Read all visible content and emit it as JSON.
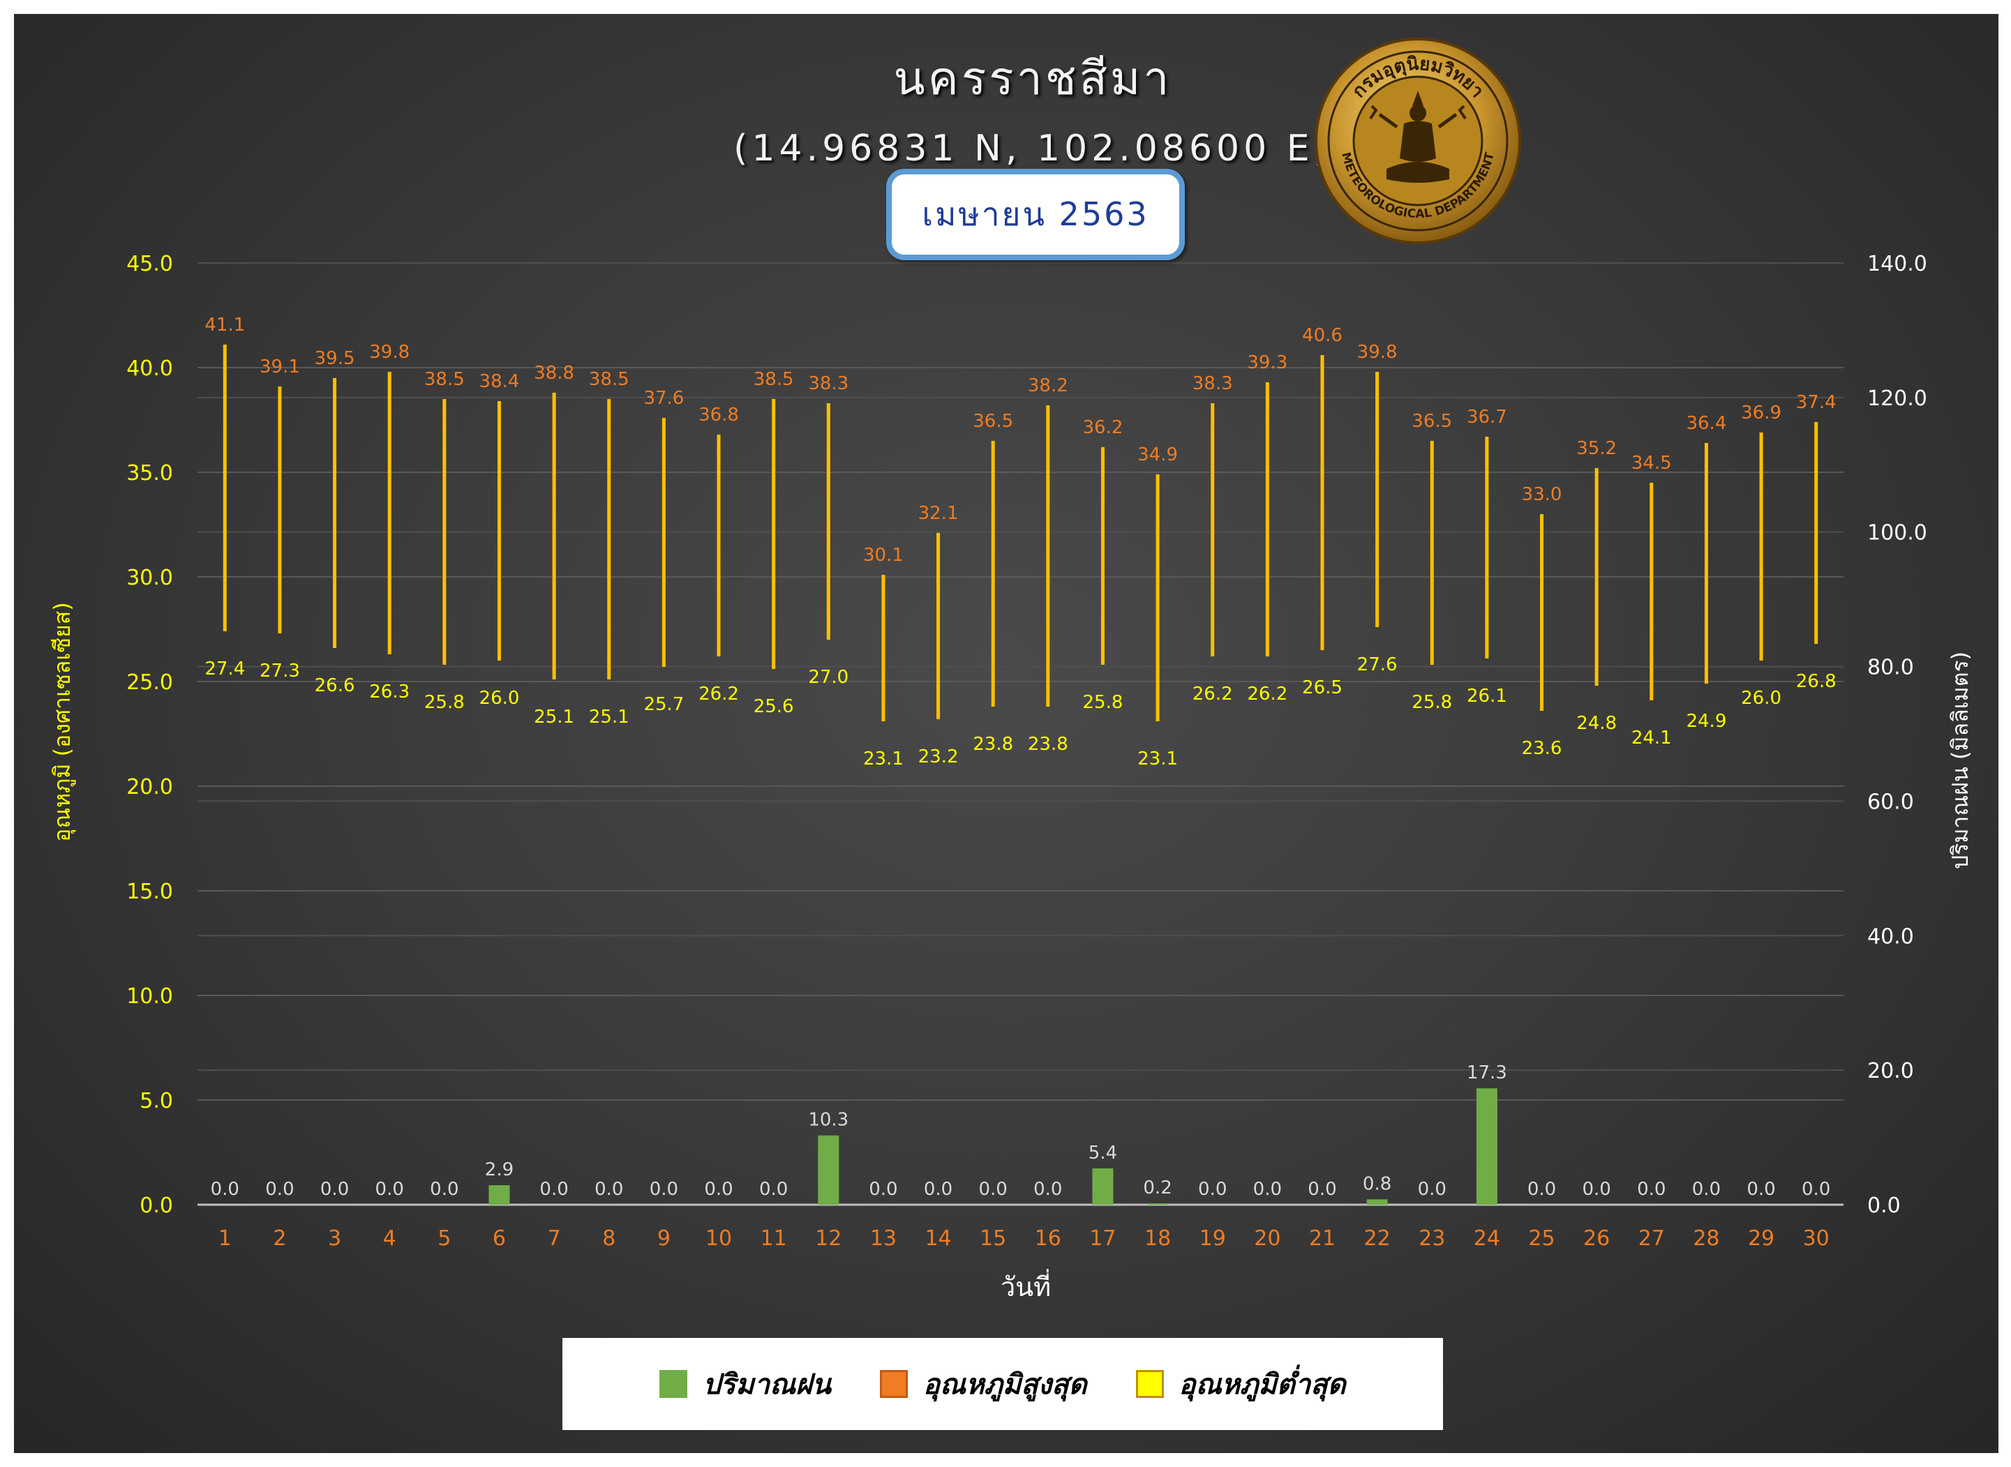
{
  "header": {
    "title": "นครราชสีมา",
    "coordinates": "(14.96831 N, 102.08600 E)",
    "month": "เมษายน 2563"
  },
  "logo": {
    "text_top": "กรมอุตุนิยมวิทยา",
    "text_bottom": "METEOROLOGICAL DEPARTMENT"
  },
  "colors": {
    "rain": "#70ad47",
    "temp_max": "#f07d23",
    "temp_min": "#ffff00",
    "range_line": "#ffc000"
  },
  "chart_data": {
    "type": "bar",
    "xlabel": "วันที่",
    "ylabel_left": "อุณหภูมิ (องศาเซลเซียส)",
    "ylabel_right": "ปริมาณฝน (มิลลิเมตร)",
    "ylim_left": [
      0,
      45
    ],
    "yticks_left": [
      "0.0",
      "5.0",
      "10.0",
      "15.0",
      "20.0",
      "25.0",
      "30.0",
      "35.0",
      "40.0",
      "45.0"
    ],
    "ylim_right": [
      0,
      140
    ],
    "yticks_right": [
      "0.0",
      "20.0",
      "40.0",
      "60.0",
      "80.0",
      "100.0",
      "120.0",
      "140.0"
    ],
    "grid": true,
    "legend_position": "bottom",
    "categories": [
      "1",
      "2",
      "3",
      "4",
      "5",
      "6",
      "7",
      "8",
      "9",
      "10",
      "11",
      "12",
      "13",
      "14",
      "15",
      "16",
      "17",
      "18",
      "19",
      "20",
      "21",
      "22",
      "23",
      "24",
      "25",
      "26",
      "27",
      "28",
      "29",
      "30"
    ],
    "series": [
      {
        "name": "ปริมาณฝน",
        "type": "bar",
        "axis": "right",
        "values": [
          0.0,
          0.0,
          0.0,
          0.0,
          0.0,
          2.9,
          0.0,
          0.0,
          0.0,
          0.0,
          0.0,
          10.3,
          0.0,
          0.0,
          0.0,
          0.0,
          5.4,
          0.2,
          0.0,
          0.0,
          0.0,
          0.8,
          0.0,
          17.3,
          0.0,
          0.0,
          0.0,
          0.0,
          0.0,
          0.0
        ]
      },
      {
        "name": "อุณหภูมิสูงสุด",
        "type": "high",
        "axis": "left",
        "values": [
          41.1,
          39.1,
          39.5,
          39.8,
          38.5,
          38.4,
          38.8,
          38.5,
          37.6,
          36.8,
          38.5,
          38.3,
          30.1,
          32.1,
          36.5,
          38.2,
          36.2,
          34.9,
          38.3,
          39.3,
          40.6,
          39.8,
          36.5,
          36.7,
          33.0,
          35.2,
          34.5,
          36.4,
          36.9,
          37.4
        ]
      },
      {
        "name": "อุณหภูมิต่ำสุด",
        "type": "low",
        "axis": "left",
        "values": [
          27.4,
          27.3,
          26.6,
          26.3,
          25.8,
          26.0,
          25.1,
          25.1,
          25.7,
          26.2,
          25.6,
          27.0,
          23.1,
          23.2,
          23.8,
          23.8,
          25.8,
          23.1,
          26.2,
          26.2,
          26.5,
          27.6,
          25.8,
          26.1,
          23.6,
          24.8,
          24.1,
          24.9,
          26.0,
          26.8
        ]
      }
    ]
  }
}
